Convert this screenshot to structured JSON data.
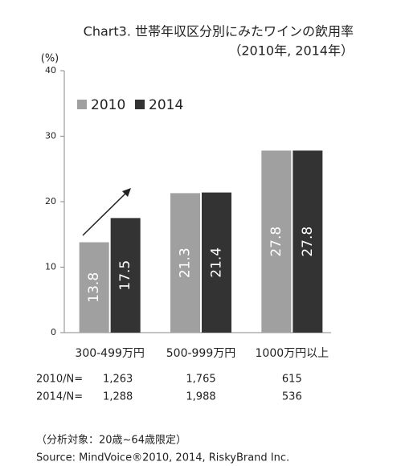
{
  "chart_data": {
    "type": "bar",
    "title": "Chart3. 世帯年収区分別にみたワインの飲用率",
    "subtitle": "（2010年, 2014年）",
    "y_label": "(%)",
    "categories": [
      "300-499万円",
      "500-999万円",
      "1000万円以上"
    ],
    "series": [
      {
        "name": "2010",
        "color": "#a0a0a0",
        "values": [
          13.8,
          21.3,
          27.8
        ]
      },
      {
        "name": "2014",
        "color": "#333333",
        "values": [
          17.5,
          21.4,
          27.8
        ]
      }
    ],
    "ylim": [
      0,
      40
    ],
    "yticks": [
      0,
      10,
      20,
      30,
      40
    ],
    "grid": false,
    "legend": "upper left",
    "n_table": [
      {
        "label": "2010/N=",
        "values": [
          "1,263",
          "1,765",
          "615"
        ]
      },
      {
        "label": "2014/N=",
        "values": [
          "1,288",
          "1,988",
          "536"
        ]
      }
    ],
    "note": "（分析対象：20歳~64歳限定）",
    "source": "Source: MindVoice®2010, 2014, RiskyBrand Inc."
  }
}
